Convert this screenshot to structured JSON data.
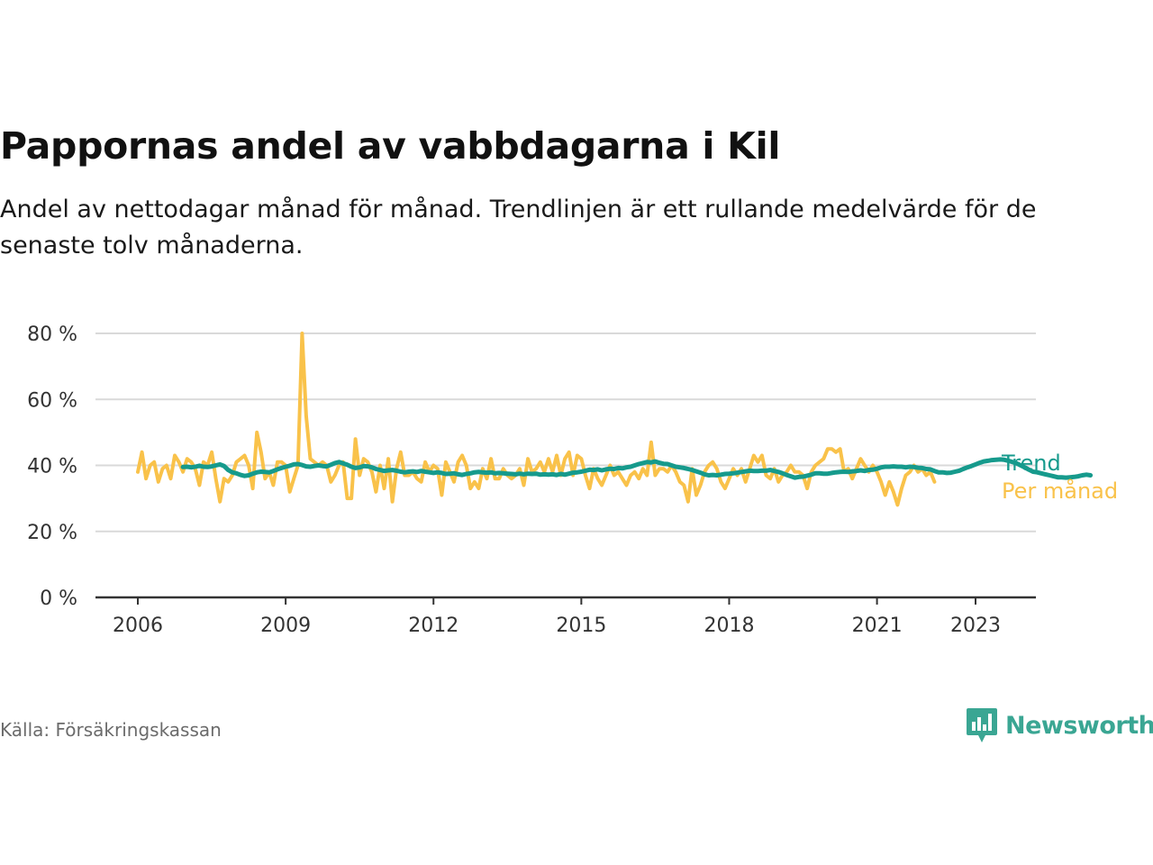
{
  "title": "Pappornas andel av vabbdagarna i Kil",
  "subtitle": "Andel av nettodagar månad för månad. Trendlinjen är ett rullande medelvärde för de senaste tolv månaderna.",
  "source": "Källa: Försäkringskassan",
  "logo": {
    "name": "Newsworthy",
    "icon": "newsworthy-logo-icon",
    "color": "#3aa693"
  },
  "chart_data": {
    "type": "line",
    "x_unit": "year",
    "xlim": [
      2006,
      2023.9
    ],
    "ylim": [
      0,
      80
    ],
    "y_ticks": [
      0,
      20,
      40,
      60,
      80
    ],
    "y_tick_labels": [
      "0 %",
      "20 %",
      "40 %",
      "60 %",
      "80 %"
    ],
    "x_ticks": [
      2006,
      2009,
      2012,
      2015,
      2018,
      2021,
      2023
    ],
    "x_tick_labels": [
      "2006",
      "2009",
      "2012",
      "2015",
      "2018",
      "2021",
      "2023"
    ],
    "grid": true,
    "legend_placement": "right end of lines",
    "series": [
      {
        "name": "Per månad",
        "color": "#f9c24a",
        "start": 2006.0,
        "step": 0.0833333,
        "values": [
          38,
          44,
          36,
          40,
          41,
          35,
          39,
          40,
          36,
          43,
          41,
          38,
          42,
          41,
          39,
          34,
          41,
          40,
          44,
          36,
          29,
          36,
          35,
          37,
          41,
          42,
          43,
          40,
          33,
          50,
          44,
          36,
          38,
          34,
          41,
          41,
          40,
          32,
          36,
          40,
          80,
          55,
          42,
          41,
          40,
          41,
          40,
          35,
          37,
          40,
          41,
          30,
          30,
          48,
          37,
          42,
          41,
          38,
          32,
          40,
          33,
          42,
          29,
          39,
          44,
          37,
          37,
          38,
          36,
          35,
          41,
          38,
          40,
          39,
          31,
          41,
          38,
          35,
          41,
          43,
          40,
          33,
          35,
          33,
          39,
          36,
          42,
          36,
          36,
          39,
          37,
          36,
          37,
          39,
          34,
          42,
          38,
          39,
          41,
          38,
          42,
          38,
          43,
          37,
          42,
          44,
          37,
          43,
          42,
          37,
          33,
          39,
          36,
          34,
          37,
          40,
          37,
          38,
          36,
          34,
          37,
          38,
          36,
          39,
          37,
          47,
          37,
          39,
          39,
          38,
          40,
          38,
          35,
          34,
          29,
          39,
          31,
          34,
          38,
          40,
          41,
          39,
          35,
          33,
          36,
          39,
          37,
          39,
          35,
          39,
          43,
          41,
          43,
          37,
          36,
          39,
          35,
          37,
          38,
          40,
          38,
          38,
          37,
          33,
          38,
          40,
          41,
          42,
          45,
          45,
          44,
          45,
          38,
          39,
          36,
          39,
          42,
          40,
          38,
          40,
          38,
          35,
          31,
          35,
          32,
          28,
          33,
          37,
          38,
          40,
          38,
          39,
          37,
          38,
          35
        ]
      },
      {
        "name": "Trend",
        "color": "#169a8c",
        "start": 2006.9167,
        "step": 0.0833333,
        "values": [
          39.5,
          39.6,
          39.4,
          39.6,
          39.9,
          39.6,
          39.5,
          39.7,
          40.0,
          40.3,
          39.8,
          38.6,
          37.9,
          37.6,
          37.1,
          36.8,
          37.0,
          37.5,
          37.9,
          38.1,
          38.0,
          37.9,
          38.3,
          38.8,
          39.2,
          39.6,
          39.9,
          40.3,
          40.4,
          40.1,
          39.7,
          39.6,
          39.8,
          40.0,
          39.8,
          39.7,
          40.2,
          40.7,
          41.0,
          40.6,
          40.2,
          39.6,
          39.2,
          39.4,
          39.8,
          39.7,
          39.4,
          38.9,
          38.6,
          38.3,
          38.5,
          38.6,
          38.4,
          38.1,
          37.9,
          38.1,
          38.2,
          38.0,
          38.3,
          38.1,
          37.9,
          37.7,
          37.9,
          37.7,
          37.4,
          37.5,
          37.6,
          37.3,
          37.1,
          37.4,
          37.6,
          37.9,
          38.0,
          37.9,
          37.8,
          37.9,
          37.6,
          37.7,
          37.6,
          37.5,
          37.4,
          37.3,
          37.5,
          37.3,
          37.5,
          37.4,
          37.5,
          37.2,
          37.3,
          37.2,
          37.3,
          37.1,
          37.4,
          37.2,
          37.5,
          37.8,
          37.9,
          38.1,
          38.4,
          38.7,
          38.6,
          38.8,
          38.5,
          38.8,
          39.0,
          38.9,
          39.2,
          39.1,
          39.4,
          39.6,
          40.0,
          40.4,
          40.7,
          41.0,
          40.9,
          41.2,
          40.8,
          40.5,
          40.4,
          40.0,
          39.6,
          39.4,
          39.2,
          38.9,
          38.6,
          38.2,
          37.8,
          37.3,
          37.0,
          37.1,
          37.0,
          37.2,
          37.4,
          37.5,
          37.6,
          37.8,
          38.0,
          38.2,
          38.4,
          38.3,
          38.3,
          38.4,
          38.4,
          38.6,
          38.3,
          38.0,
          37.6,
          37.1,
          36.7,
          36.3,
          36.5,
          36.6,
          36.9,
          37.2,
          37.6,
          37.6,
          37.5,
          37.5,
          37.7,
          37.9,
          38.0,
          38.1,
          38.0,
          38.2,
          38.3,
          38.5,
          38.3,
          38.6,
          38.7,
          39.0,
          39.4,
          39.6,
          39.6,
          39.7,
          39.6,
          39.6,
          39.4,
          39.6,
          39.5,
          39.3,
          39.2,
          38.9,
          38.8,
          38.3,
          37.9,
          37.9,
          37.7,
          37.8,
          38.1,
          38.4,
          38.9,
          39.4,
          39.8,
          40.3,
          40.8,
          41.2,
          41.4,
          41.6,
          41.7,
          41.8,
          41.7,
          41.4,
          41.0,
          40.6,
          40.0,
          39.4,
          38.7,
          38.1,
          37.9,
          37.6,
          37.3,
          37.0,
          36.7,
          36.4,
          36.4,
          36.3,
          36.4,
          36.5,
          36.7,
          37.0,
          37.2,
          37.0
        ]
      }
    ]
  }
}
